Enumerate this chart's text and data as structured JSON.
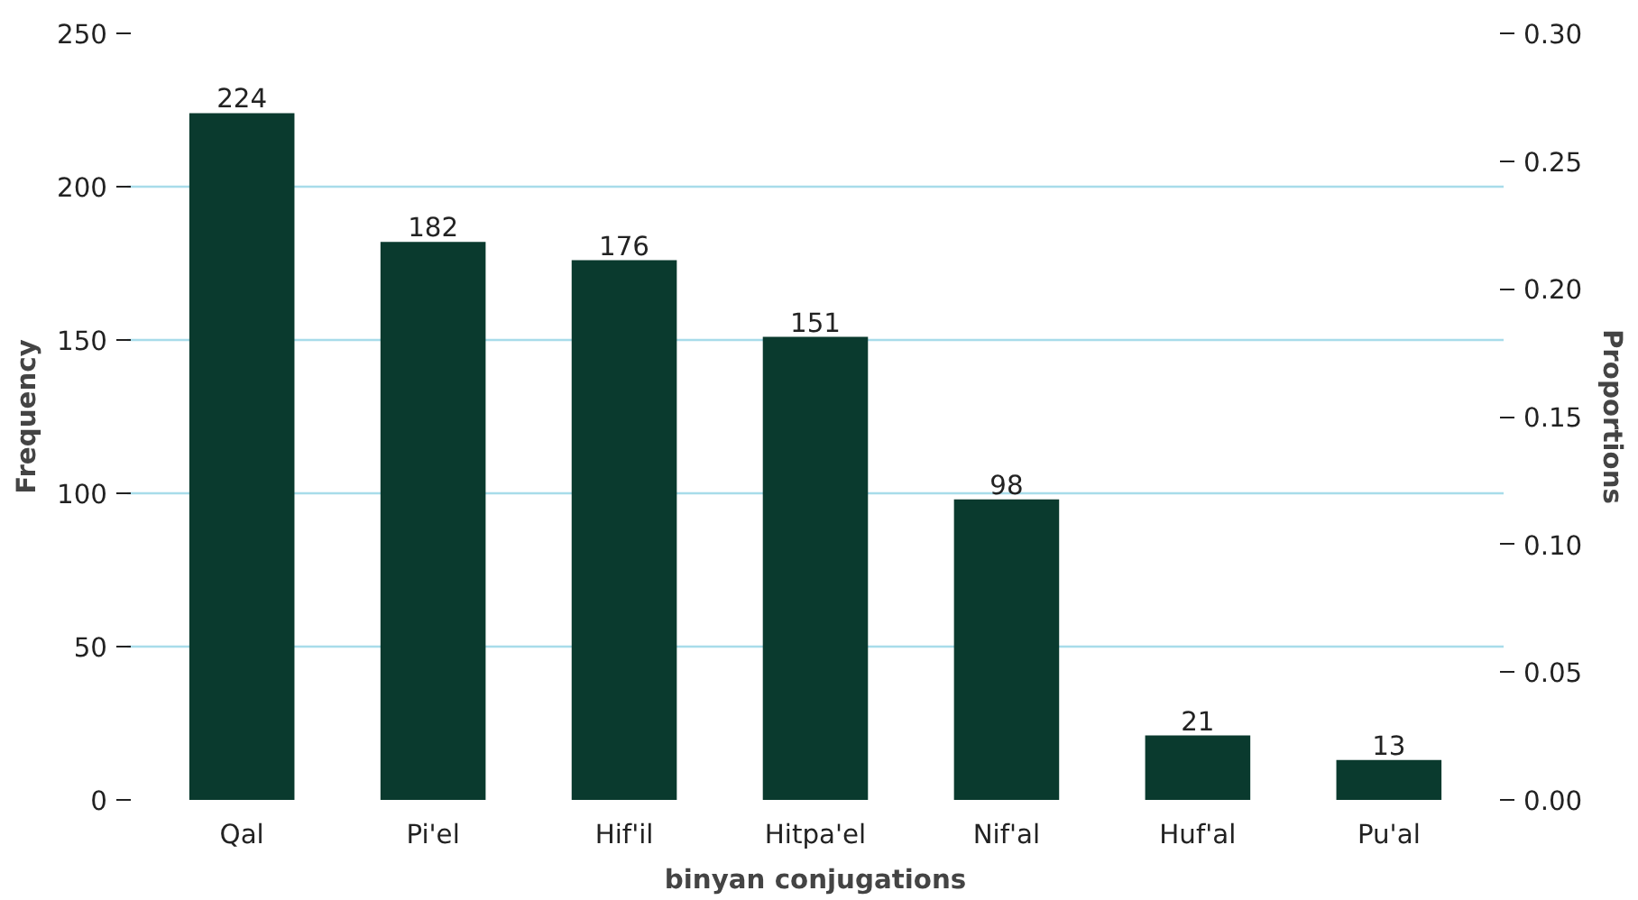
{
  "chart_data": {
    "type": "bar",
    "xlabel": "binyan conjugations",
    "ylabel": "Frequency",
    "y2label": "Proportions",
    "categories": [
      "Qal",
      "Pi'el",
      "Hif'il",
      "Hitpa'el",
      "Nif'al",
      "Huf'al",
      "Pu'al"
    ],
    "values": [
      224,
      182,
      176,
      151,
      98,
      21,
      13
    ],
    "color": "#0a3a2e",
    "data_labels": true,
    "ylim": [
      0,
      250
    ],
    "yticks": [
      0,
      50,
      100,
      150,
      200,
      250
    ],
    "y2lim": [
      0,
      0.3
    ],
    "y2ticks": [
      {
        "value": 0,
        "label": "0.00"
      },
      {
        "value": 0.05,
        "label": "0.05"
      },
      {
        "value": 0.1,
        "label": "0.10"
      },
      {
        "value": 0.15,
        "label": "0.15"
      },
      {
        "value": 0.2,
        "label": "0.20"
      },
      {
        "value": 0.25,
        "label": "0.25"
      },
      {
        "value": 0.3,
        "label": "0.30"
      }
    ],
    "grid": "y"
  }
}
